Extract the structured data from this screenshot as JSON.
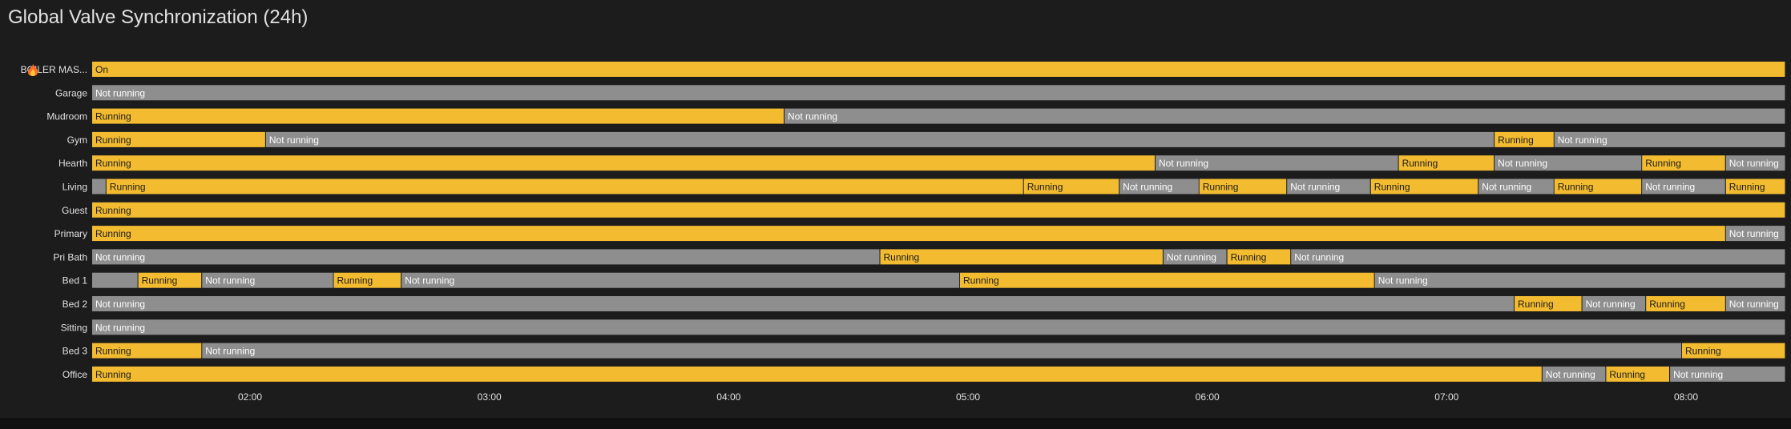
{
  "card": {
    "title": "Global Valve Synchronization (24h)"
  },
  "colors": {
    "on": "#f2bb30",
    "off": "#8e8e8e",
    "on_text": "#1c1c1c",
    "off_text": "#ffffff",
    "label_text": "#e1e1e1",
    "axis_text": "#e1e1e1"
  },
  "chart_data": {
    "type": "timeline",
    "title": "Global Valve Synchronization (24h)",
    "x_range": [
      "01:20",
      "08:25"
    ],
    "x_ticks": [
      "02:00",
      "03:00",
      "04:00",
      "05:00",
      "06:00",
      "07:00",
      "08:00"
    ],
    "rows": [
      {
        "name": "BOILER MAS...",
        "icon": "fire-icon",
        "segments": [
          {
            "start": "01:20",
            "end": "08:25",
            "state": "On"
          }
        ]
      },
      {
        "name": "Garage",
        "segments": [
          {
            "start": "01:20",
            "end": "08:25",
            "state": "Not running"
          }
        ]
      },
      {
        "name": "Mudroom",
        "segments": [
          {
            "start": "01:20",
            "end": "04:14",
            "state": "Running"
          },
          {
            "start": "04:14",
            "end": "08:25",
            "state": "Not running"
          }
        ]
      },
      {
        "name": "Gym",
        "segments": [
          {
            "start": "01:20",
            "end": "02:04",
            "state": "Running"
          },
          {
            "start": "02:04",
            "end": "07:12",
            "state": "Not running"
          },
          {
            "start": "07:12",
            "end": "07:27",
            "state": "Running"
          },
          {
            "start": "07:27",
            "end": "08:25",
            "state": "Not running"
          }
        ]
      },
      {
        "name": "Hearth",
        "segments": [
          {
            "start": "01:20",
            "end": "05:47",
            "state": "Running"
          },
          {
            "start": "05:47",
            "end": "06:48",
            "state": "Not running"
          },
          {
            "start": "06:48",
            "end": "07:12",
            "state": "Running"
          },
          {
            "start": "07:12",
            "end": "07:49",
            "state": "Not running"
          },
          {
            "start": "07:49",
            "end": "08:10",
            "state": "Running"
          },
          {
            "start": "08:10",
            "end": "08:25",
            "state": "Not running"
          }
        ]
      },
      {
        "name": "Living",
        "segments": [
          {
            "start": "01:20",
            "end": "01:24",
            "state": "Not running",
            "label": ""
          },
          {
            "start": "01:24",
            "end": "05:14",
            "state": "Running"
          },
          {
            "start": "05:14",
            "end": "05:38",
            "state": "Running"
          },
          {
            "start": "05:38",
            "end": "05:58",
            "state": "Not running"
          },
          {
            "start": "05:58",
            "end": "06:20",
            "state": "Running"
          },
          {
            "start": "06:20",
            "end": "06:41",
            "state": "Not running"
          },
          {
            "start": "06:41",
            "end": "07:08",
            "state": "Running"
          },
          {
            "start": "07:08",
            "end": "07:27",
            "state": "Not running"
          },
          {
            "start": "07:27",
            "end": "07:49",
            "state": "Running"
          },
          {
            "start": "07:49",
            "end": "08:10",
            "state": "Not running"
          },
          {
            "start": "08:10",
            "end": "08:25",
            "state": "Running"
          }
        ]
      },
      {
        "name": "Guest",
        "segments": [
          {
            "start": "01:20",
            "end": "08:25",
            "state": "Running"
          }
        ]
      },
      {
        "name": "Primary",
        "segments": [
          {
            "start": "01:20",
            "end": "08:10",
            "state": "Running"
          },
          {
            "start": "08:10",
            "end": "08:25",
            "state": "Not running"
          }
        ]
      },
      {
        "name": "Pri Bath",
        "segments": [
          {
            "start": "01:20",
            "end": "04:38",
            "state": "Not running"
          },
          {
            "start": "04:38",
            "end": "05:49",
            "state": "Running"
          },
          {
            "start": "05:49",
            "end": "06:05",
            "state": "Not running"
          },
          {
            "start": "06:05",
            "end": "06:21",
            "state": "Running"
          },
          {
            "start": "06:21",
            "end": "08:25",
            "state": "Not running"
          }
        ]
      },
      {
        "name": "Bed 1",
        "segments": [
          {
            "start": "01:20",
            "end": "01:32",
            "state": "Not running",
            "label": ""
          },
          {
            "start": "01:32",
            "end": "01:48",
            "state": "Running"
          },
          {
            "start": "01:48",
            "end": "02:21",
            "state": "Not running"
          },
          {
            "start": "02:21",
            "end": "02:38",
            "state": "Running"
          },
          {
            "start": "02:38",
            "end": "04:58",
            "state": "Not running"
          },
          {
            "start": "04:58",
            "end": "06:42",
            "state": "Running"
          },
          {
            "start": "06:42",
            "end": "08:25",
            "state": "Not running"
          }
        ]
      },
      {
        "name": "Bed 2",
        "segments": [
          {
            "start": "01:20",
            "end": "07:17",
            "state": "Not running"
          },
          {
            "start": "07:17",
            "end": "07:34",
            "state": "Running"
          },
          {
            "start": "07:34",
            "end": "07:50",
            "state": "Not running"
          },
          {
            "start": "07:50",
            "end": "08:10",
            "state": "Running"
          },
          {
            "start": "08:10",
            "end": "08:25",
            "state": "Not running"
          }
        ]
      },
      {
        "name": "Sitting",
        "segments": [
          {
            "start": "01:20",
            "end": "08:25",
            "state": "Not running"
          }
        ]
      },
      {
        "name": "Bed 3",
        "segments": [
          {
            "start": "01:20",
            "end": "01:48",
            "state": "Running"
          },
          {
            "start": "01:48",
            "end": "07:59",
            "state": "Not running"
          },
          {
            "start": "07:59",
            "end": "08:25",
            "state": "Running"
          }
        ]
      },
      {
        "name": "Office",
        "segments": [
          {
            "start": "01:20",
            "end": "07:24",
            "state": "Running"
          },
          {
            "start": "07:24",
            "end": "07:40",
            "state": "Not running"
          },
          {
            "start": "07:40",
            "end": "07:56",
            "state": "Running"
          },
          {
            "start": "07:56",
            "end": "08:25",
            "state": "Not running"
          }
        ]
      }
    ]
  }
}
